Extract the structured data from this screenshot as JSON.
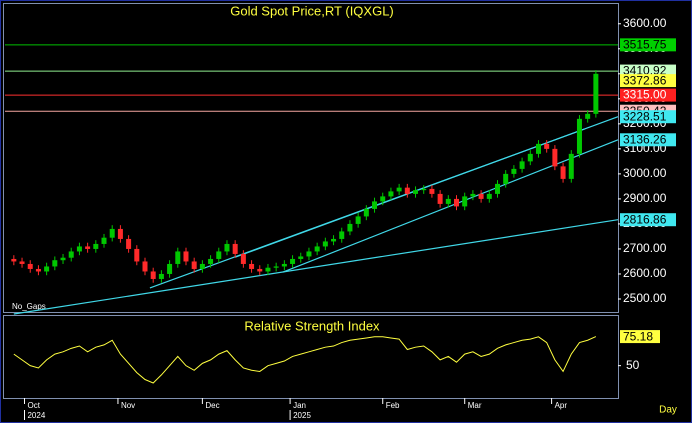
{
  "chart_data": {
    "type": "candlestick",
    "title": "Gold Spot Price,RT (IQXGL)",
    "note": "No_Gaps",
    "xlim": [
      -1.2,
      73.7
    ],
    "xticks": [
      {
        "value": 1.3,
        "label": "Oct"
      },
      {
        "value": 12.7,
        "label": "Nov"
      },
      {
        "value": 23,
        "label": "Dec"
      },
      {
        "value": 33.7,
        "label": "Jan"
      },
      {
        "value": 45,
        "label": "Feb"
      },
      {
        "value": 55,
        "label": "Mar"
      },
      {
        "value": 65.6,
        "label": "Apr"
      }
    ],
    "year_labels": [
      {
        "value": 1.3,
        "label": "2024"
      },
      {
        "value": 33.7,
        "label": "2025"
      }
    ],
    "period_label": "Day",
    "ylim": [
      2448,
      3679
    ],
    "yticks": [
      {
        "value": 3600,
        "label": "3600.00"
      },
      {
        "value": 3500,
        "label": "3500.00"
      },
      {
        "value": 3400,
        "label": "3400.00"
      },
      {
        "value": 3300,
        "label": "3300.00"
      },
      {
        "value": 3200,
        "label": "3200.00"
      },
      {
        "value": 3100,
        "label": "3100.00"
      },
      {
        "value": 3000,
        "label": "3000.00"
      },
      {
        "value": 2900,
        "label": "2900.00"
      },
      {
        "value": 2800,
        "label": "2800.00"
      },
      {
        "value": 2700,
        "label": "2700.00"
      },
      {
        "value": 2600,
        "label": "2600.00"
      },
      {
        "value": 2500,
        "label": "2500.00"
      }
    ],
    "up_color": "#00c800",
    "down_color": "#ff2a2a",
    "open": [
      2660,
      2650,
      2640,
      2620,
      2610,
      2630,
      2655,
      2665,
      2690,
      2710,
      2700,
      2720,
      2745,
      2780,
      2740,
      2700,
      2650,
      2610,
      2580,
      2600,
      2640,
      2690,
      2650,
      2620,
      2640,
      2660,
      2690,
      2720,
      2680,
      2640,
      2620,
      2610,
      2625,
      2630,
      2640,
      2660,
      2670,
      2690,
      2710,
      2730,
      2740,
      2770,
      2800,
      2830,
      2860,
      2890,
      2910,
      2930,
      2945,
      2920,
      2935,
      2940,
      2920,
      2880,
      2900,
      2870,
      2910,
      2920,
      2900,
      2920,
      2960,
      3000,
      3020,
      3050,
      3080,
      3120,
      3100,
      3030,
      2980,
      3080,
      3220,
      3240
    ],
    "high": [
      2675,
      2665,
      2655,
      2635,
      2645,
      2670,
      2680,
      2705,
      2725,
      2725,
      2735,
      2760,
      2795,
      2795,
      2755,
      2715,
      2665,
      2625,
      2615,
      2655,
      2705,
      2705,
      2665,
      2655,
      2675,
      2705,
      2735,
      2735,
      2695,
      2655,
      2635,
      2640,
      2645,
      2655,
      2675,
      2685,
      2705,
      2725,
      2745,
      2755,
      2785,
      2815,
      2845,
      2875,
      2905,
      2925,
      2945,
      2960,
      2960,
      2950,
      2955,
      2955,
      2935,
      2915,
      2915,
      2925,
      2935,
      2935,
      2935,
      2975,
      3015,
      3035,
      3065,
      3095,
      3135,
      3135,
      3115,
      3045,
      3095,
      3235,
      3255,
      3415
    ],
    "low": [
      2635,
      2625,
      2605,
      2595,
      2595,
      2615,
      2640,
      2650,
      2675,
      2685,
      2685,
      2705,
      2730,
      2725,
      2685,
      2635,
      2595,
      2565,
      2565,
      2585,
      2625,
      2635,
      2605,
      2605,
      2625,
      2645,
      2675,
      2665,
      2625,
      2605,
      2595,
      2595,
      2610,
      2615,
      2625,
      2645,
      2655,
      2675,
      2695,
      2715,
      2725,
      2755,
      2785,
      2815,
      2845,
      2875,
      2895,
      2915,
      2905,
      2905,
      2920,
      2905,
      2865,
      2865,
      2855,
      2855,
      2895,
      2885,
      2885,
      2905,
      2945,
      2985,
      3005,
      3035,
      3065,
      3085,
      3015,
      2965,
      2965,
      3065,
      3205,
      3225
    ],
    "close": [
      2650,
      2640,
      2620,
      2610,
      2630,
      2655,
      2665,
      2690,
      2710,
      2700,
      2720,
      2745,
      2780,
      2740,
      2700,
      2650,
      2610,
      2580,
      2600,
      2640,
      2690,
      2650,
      2620,
      2640,
      2660,
      2690,
      2720,
      2680,
      2640,
      2620,
      2610,
      2625,
      2630,
      2640,
      2660,
      2670,
      2690,
      2710,
      2730,
      2740,
      2770,
      2800,
      2830,
      2860,
      2890,
      2910,
      2930,
      2945,
      2920,
      2935,
      2940,
      2920,
      2880,
      2900,
      2870,
      2910,
      2920,
      2900,
      2920,
      2960,
      3000,
      3020,
      3050,
      3080,
      3120,
      3100,
      3030,
      2980,
      3080,
      3220,
      3240,
      3400
    ],
    "hlines": {
      "values": [
        3515.75,
        3410.92,
        3315,
        3250.42
      ],
      "colors": [
        "#00c000",
        "#90ee90",
        "#ff3030",
        "#f4a6a0"
      ]
    },
    "trendlines": [
      {
        "x": [
          0,
          73.7
        ],
        "values": [
          2440,
          2816.86
        ],
        "color": "#40d8e8"
      },
      {
        "x": [
          16.6,
          73.7
        ],
        "values": [
          2544,
          3228.51
        ],
        "color": "#40d8e8"
      },
      {
        "x": [
          32.8,
          73.7
        ],
        "values": [
          2607,
          3136.26
        ],
        "color": "#40d8e8"
      },
      {
        "x": [
          27,
          69.6
        ],
        "values": [
          2667,
          3179
        ],
        "color": "#40d8e8"
      }
    ],
    "price_labels": {
      "values": [
        3515.75,
        3410.92,
        3372.86,
        3315,
        3250.42,
        3228.51,
        3136.26,
        2816.86
      ],
      "value_labels": [
        "3515.75",
        "3410.92",
        "3372.86",
        "3315.00",
        "3250.42",
        "3228.51",
        "3136.26",
        "2816.86"
      ],
      "colors": [
        "#00d000",
        "#c8ffc8",
        "#ffff40",
        "#ff2020",
        "#ffc0c0",
        "#40e8f0",
        "#40e8f0",
        "#40e8f0"
      ],
      "text_colors": [
        "#000",
        "#000",
        "#000",
        "#fff",
        "#000",
        "#000",
        "#000",
        "#000"
      ]
    },
    "rsi": {
      "title": "Relative Strength Index",
      "color": "#ffff40",
      "ylim": [
        22,
        93
      ],
      "yticks": [
        50
      ],
      "values": [
        60,
        55,
        50,
        48,
        55,
        60,
        62,
        65,
        67,
        62,
        66,
        68,
        72,
        60,
        52,
        44,
        38,
        35,
        42,
        50,
        58,
        50,
        46,
        52,
        55,
        60,
        63,
        55,
        48,
        46,
        45,
        50,
        52,
        54,
        58,
        60,
        62,
        64,
        66,
        67,
        70,
        72,
        73,
        74,
        75,
        75,
        74,
        73,
        64,
        66,
        67,
        62,
        55,
        58,
        53,
        60,
        62,
        58,
        60,
        65,
        68,
        70,
        72,
        73,
        75,
        70,
        55,
        45,
        60,
        70,
        72,
        75.18
      ],
      "label_color": "#ffff40"
    }
  }
}
